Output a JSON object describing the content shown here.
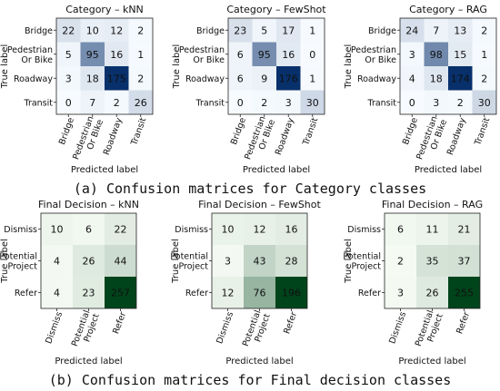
{
  "captions": {
    "category": "(a) Confusion matrices for Category classes",
    "final": "(b) Confusion matrices for Final decision classes"
  },
  "colors": {
    "category_cmap": [
      "#f7fbff",
      "#08306b"
    ],
    "final_cmap": [
      "#f7fcf5",
      "#00441b"
    ],
    "dark_text": "#ffffff",
    "light_text": "#111111"
  },
  "chart_data": [
    {
      "type": "heatmap",
      "group": "category",
      "title": "Category – kNN",
      "xlabel": "Predicted label",
      "ylabel": "True label",
      "x_ticks": [
        "Bridge",
        "Pedestrian Or Bike",
        "Roadway",
        "Transit"
      ],
      "y_ticks": [
        "Bridge",
        "Pedestrian Or Bike",
        "Roadway",
        "Transit"
      ],
      "values": [
        [
          22,
          10,
          12,
          2
        ],
        [
          5,
          95,
          16,
          1
        ],
        [
          3,
          18,
          175,
          2
        ],
        [
          0,
          7,
          2,
          26
        ]
      ]
    },
    {
      "type": "heatmap",
      "group": "category",
      "title": "Category – FewShot",
      "xlabel": "Predicted label",
      "ylabel": "True label",
      "x_ticks": [
        "Bridge",
        "Pedestrian Or Bike",
        "Roadway",
        "Transit"
      ],
      "y_ticks": [
        "Bridge",
        "Pedestrian Or Bike",
        "Roadway",
        "Transit"
      ],
      "values": [
        [
          23,
          5,
          17,
          1
        ],
        [
          6,
          95,
          16,
          0
        ],
        [
          6,
          9,
          176,
          1
        ],
        [
          0,
          2,
          3,
          30
        ]
      ]
    },
    {
      "type": "heatmap",
      "group": "category",
      "title": "Category – RAG",
      "xlabel": "Predicted label",
      "ylabel": "True label",
      "x_ticks": [
        "Bridge",
        "Pedestrian Or Bike",
        "Roadway",
        "Transit"
      ],
      "y_ticks": [
        "Bridge",
        "Pedestrian Or Bike",
        "Roadway",
        "Transit"
      ],
      "values": [
        [
          24,
          7,
          13,
          2
        ],
        [
          3,
          98,
          15,
          1
        ],
        [
          4,
          18,
          174,
          2
        ],
        [
          0,
          3,
          2,
          30
        ]
      ]
    },
    {
      "type": "heatmap",
      "group": "final",
      "title": "Final Decision – kNN",
      "xlabel": "Predicted label",
      "ylabel": "True label",
      "x_ticks": [
        "Dismiss",
        "Potential Project",
        "Refer"
      ],
      "y_ticks": [
        "Dismiss",
        "Potential Project",
        "Refer"
      ],
      "values": [
        [
          10,
          6,
          22
        ],
        [
          4,
          26,
          44
        ],
        [
          4,
          23,
          257
        ]
      ]
    },
    {
      "type": "heatmap",
      "group": "final",
      "title": "Final Decision – FewShot",
      "xlabel": "Predicted label",
      "ylabel": "True label",
      "x_ticks": [
        "Dismiss",
        "Potential Project",
        "Refer"
      ],
      "y_ticks": [
        "Dismiss",
        "Potential Project",
        "Refer"
      ],
      "values": [
        [
          10,
          12,
          16
        ],
        [
          3,
          43,
          28
        ],
        [
          12,
          76,
          196
        ]
      ]
    },
    {
      "type": "heatmap",
      "group": "final",
      "title": "Final Decision – RAG",
      "xlabel": "Predicted label",
      "ylabel": "True label",
      "x_ticks": [
        "Dismiss",
        "Potential Project",
        "Refer"
      ],
      "y_ticks": [
        "Dismiss",
        "Potential Project",
        "Refer"
      ],
      "values": [
        [
          6,
          11,
          21
        ],
        [
          2,
          35,
          37
        ],
        [
          3,
          26,
          255
        ]
      ]
    }
  ]
}
